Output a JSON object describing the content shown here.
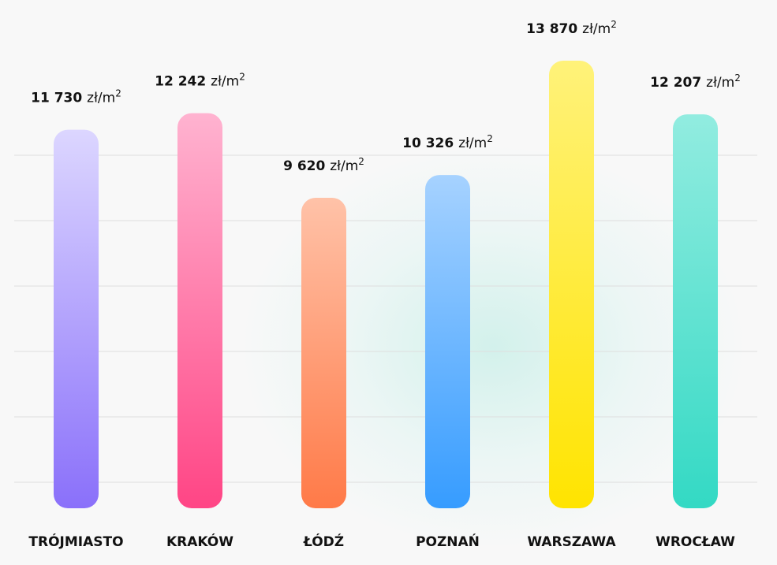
{
  "chart_data": {
    "type": "bar",
    "categories": [
      "TRÓJMIASTO",
      "KRAKÓW",
      "ŁÓDŹ",
      "POZNAŃ",
      "WARSZAWA",
      "WROCŁAW"
    ],
    "values": [
      11730,
      12242,
      9620,
      10326,
      13870,
      12207
    ],
    "value_labels": [
      "11 730",
      "12 242",
      "9 620",
      "10 326",
      "13 870",
      "12 207"
    ],
    "unit": "zł/m",
    "unit_superscript": "2",
    "grid": true,
    "colors": [
      [
        "#dcd6ff",
        "#8a70fa"
      ],
      [
        "#ffb3d0",
        "#ff4585"
      ],
      [
        "#ffc2a8",
        "#ff7a48"
      ],
      [
        "#a6d2ff",
        "#369cff"
      ],
      [
        "#fff27a",
        "#ffe400"
      ],
      [
        "#92ece0",
        "#33d9c4"
      ]
    ]
  }
}
